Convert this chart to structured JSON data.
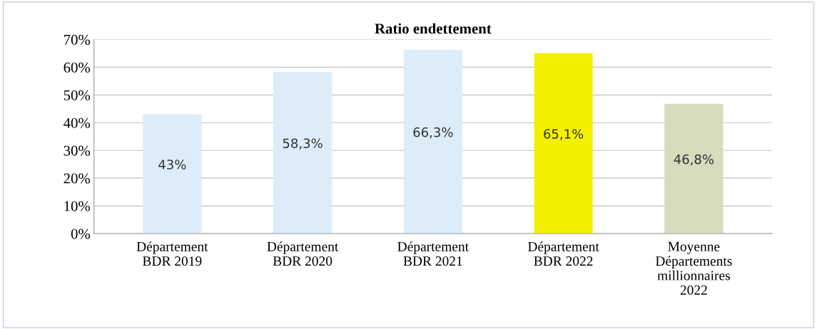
{
  "chart_data": {
    "type": "bar",
    "title": "Ratio endettement",
    "categories": [
      "Département\nBDR 2019",
      "Département\nBDR 2020",
      "Département\nBDR 2021",
      "Département\nBDR 2022",
      "Moyenne\nDépartements\nmillionnaires\n2022"
    ],
    "values": [
      43,
      58.3,
      66.3,
      65.1,
      46.8
    ],
    "colors": [
      "#dcedf9",
      "#dcedf9",
      "#dcedf9",
      "#f5f000",
      "#d6dcbc"
    ],
    "value_labels": [
      "43%",
      "58,3%",
      "66,3%",
      "65,1%",
      "46,8%"
    ],
    "ylim": [
      0,
      70
    ],
    "yticks": [
      {
        "value": 0,
        "label": "0%"
      },
      {
        "value": 10,
        "label": "10%"
      },
      {
        "value": 20,
        "label": "20%"
      },
      {
        "value": 30,
        "label": "30%"
      },
      {
        "value": 40,
        "label": "40%"
      },
      {
        "value": 50,
        "label": "50%"
      },
      {
        "value": 60,
        "label": "60%"
      },
      {
        "value": 70,
        "label": "70%"
      }
    ],
    "grid": "y",
    "legend": false
  }
}
